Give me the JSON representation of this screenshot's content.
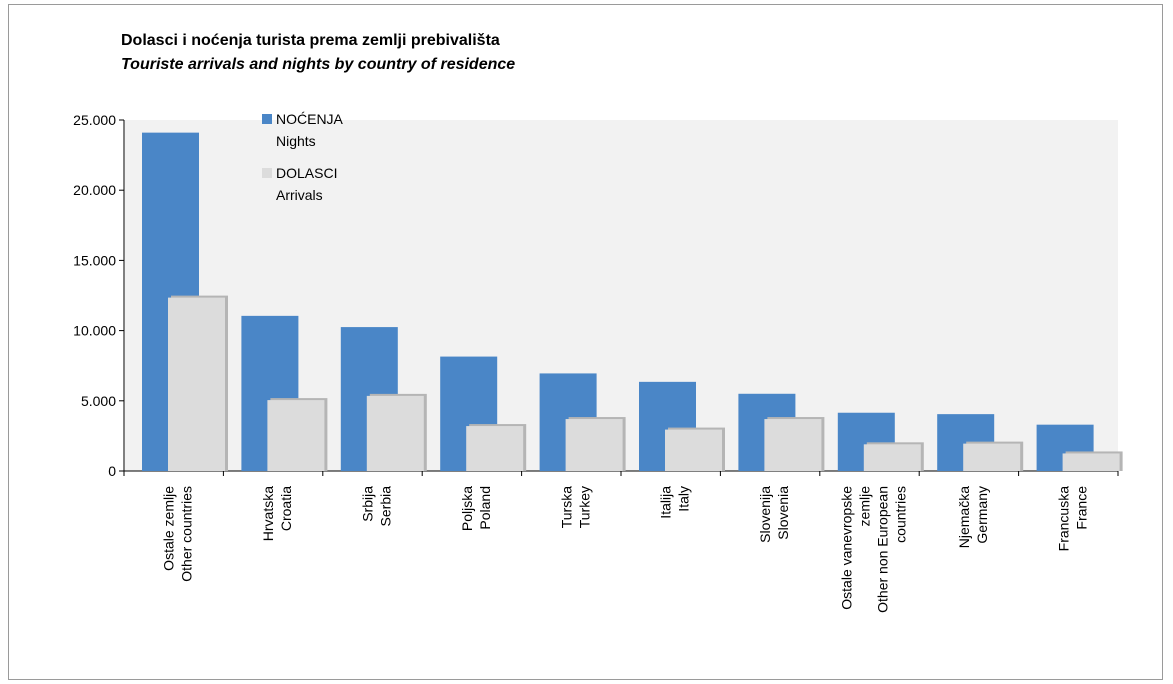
{
  "title": "Dolasci i noćenja turista prema zemlji prebivališta",
  "subtitle": "Touriste arrivals and nights by country of residence",
  "colors": {
    "nights": "#4a86c7",
    "arrivals": "#dcdcdc",
    "shadow": "#b5b5b5",
    "plot_bg": "#f2f2f2"
  },
  "chart_data": {
    "type": "bar",
    "title": "Dolasci i noćenja turista prema zemlji prebivališta",
    "subtitle": "Touriste arrivals and nights by country of residence",
    "categories": [
      [
        "Ostale zemlje",
        "Other countries"
      ],
      [
        "Hrvatska",
        "Croatia"
      ],
      [
        "Srbija",
        "Serbia"
      ],
      [
        "Poljska",
        "Poland"
      ],
      [
        "Turska",
        "Turkey"
      ],
      [
        "Italija",
        "Italy"
      ],
      [
        "Slovenija",
        "Slovenia"
      ],
      [
        "Ostale vanevropske",
        "zemlje",
        "Other non European",
        "countries"
      ],
      [
        "Njemačka",
        "Germany"
      ],
      [
        "Francuska",
        "France"
      ]
    ],
    "series": [
      {
        "name": "NOĆENJA",
        "name_en": "Nights",
        "values": [
          24100,
          11050,
          10250,
          8150,
          6950,
          6350,
          5500,
          4150,
          4050,
          3300
        ]
      },
      {
        "name": "DOLASCI",
        "name_en": "Arrivals",
        "values": [
          12350,
          5050,
          5350,
          3200,
          3700,
          2950,
          3700,
          1900,
          1950,
          1250
        ]
      }
    ],
    "yticks": [
      "0",
      "5.000",
      "10.000",
      "15.000",
      "20.000",
      "25.000"
    ],
    "ylim": [
      0,
      25000
    ],
    "legend_position": "top-left",
    "grid": false
  }
}
